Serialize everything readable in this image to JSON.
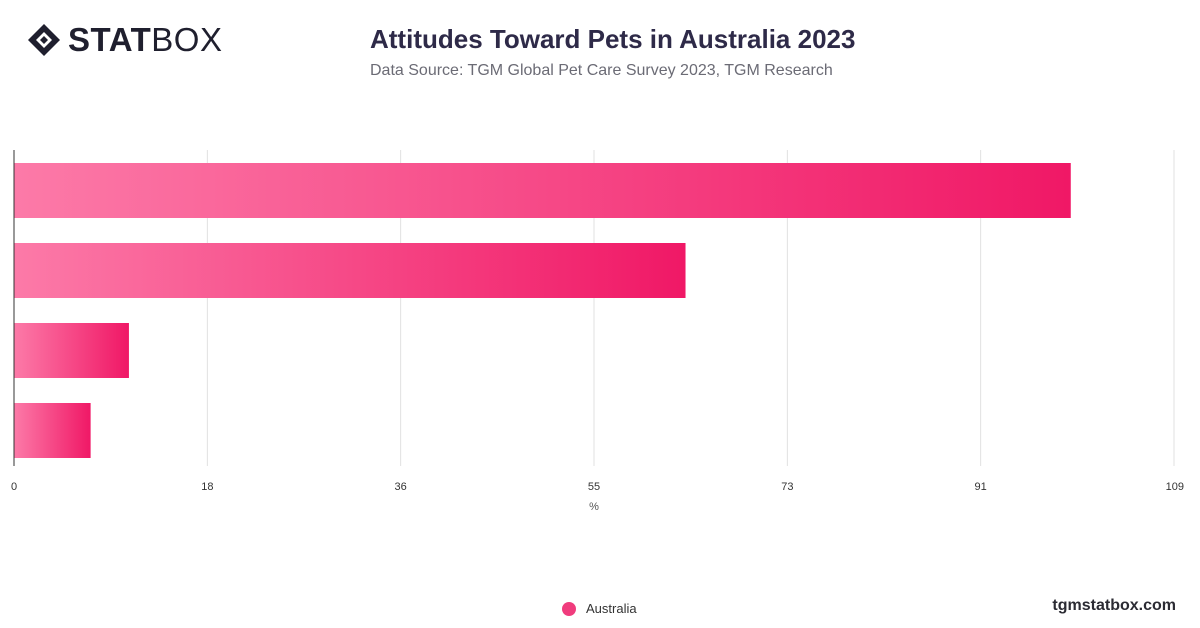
{
  "brand": {
    "logo_bold": "STAT",
    "logo_light": "BOX",
    "logo_icon": "diamond-logo-icon",
    "site": "tgmstatbox.com"
  },
  "header": {
    "title": "Attitudes Toward Pets in Australia 2023",
    "subtitle": "Data Source: TGM Global Pet Care Survey 2023, TGM Research"
  },
  "colors": {
    "bar_start": "#fc7aa8",
    "bar_end": "#f01866",
    "grid": "#e1e1e1",
    "axis": "#333333",
    "legend_dot": "#f03c7d"
  },
  "chart_data": {
    "type": "bar",
    "orientation": "horizontal",
    "title": "Attitudes Toward Pets in Australia 2023",
    "xlabel": "%",
    "ylabel": "",
    "xlim": [
      0,
      109
    ],
    "ticks": [
      "0",
      "18",
      "36",
      "55",
      "73",
      "91",
      "109"
    ],
    "tick_values": [
      0,
      18.17,
      36.33,
      54.5,
      72.67,
      90.83,
      109
    ],
    "categories": [
      "",
      "",
      "",
      ""
    ],
    "series": [
      {
        "name": "Australia",
        "values": [
          99.3,
          63.1,
          10.8,
          7.2
        ]
      }
    ],
    "grid": true,
    "legend": "bottom-center"
  }
}
